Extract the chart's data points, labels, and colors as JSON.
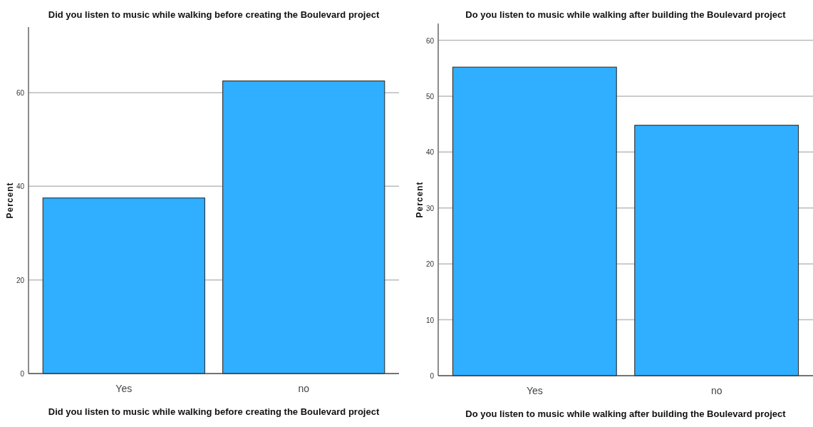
{
  "chart_data": [
    {
      "type": "bar",
      "title": "Did you listen to music while walking before creating the Boulevard project",
      "xlabel": "Did you listen to music while walking before creating the Boulevard project",
      "ylabel": "Percent",
      "categories": [
        "Yes",
        "no"
      ],
      "values": [
        37.5,
        62.5
      ],
      "color": "#30aeff",
      "ylim": [
        0,
        74
      ],
      "yticks": [
        0,
        20,
        40,
        60
      ],
      "grid": "y"
    },
    {
      "type": "bar",
      "title": "Do you listen to music while walking after building the Boulevard project",
      "xlabel": "Do you listen to music while walking after building the Boulevard project",
      "ylabel": "Percent",
      "categories": [
        "Yes",
        "no"
      ],
      "values": [
        55.2,
        44.8
      ],
      "color": "#30aeff",
      "ylim": [
        0,
        63
      ],
      "yticks": [
        0,
        10,
        20,
        30,
        40,
        50,
        60
      ],
      "grid": "y"
    }
  ]
}
